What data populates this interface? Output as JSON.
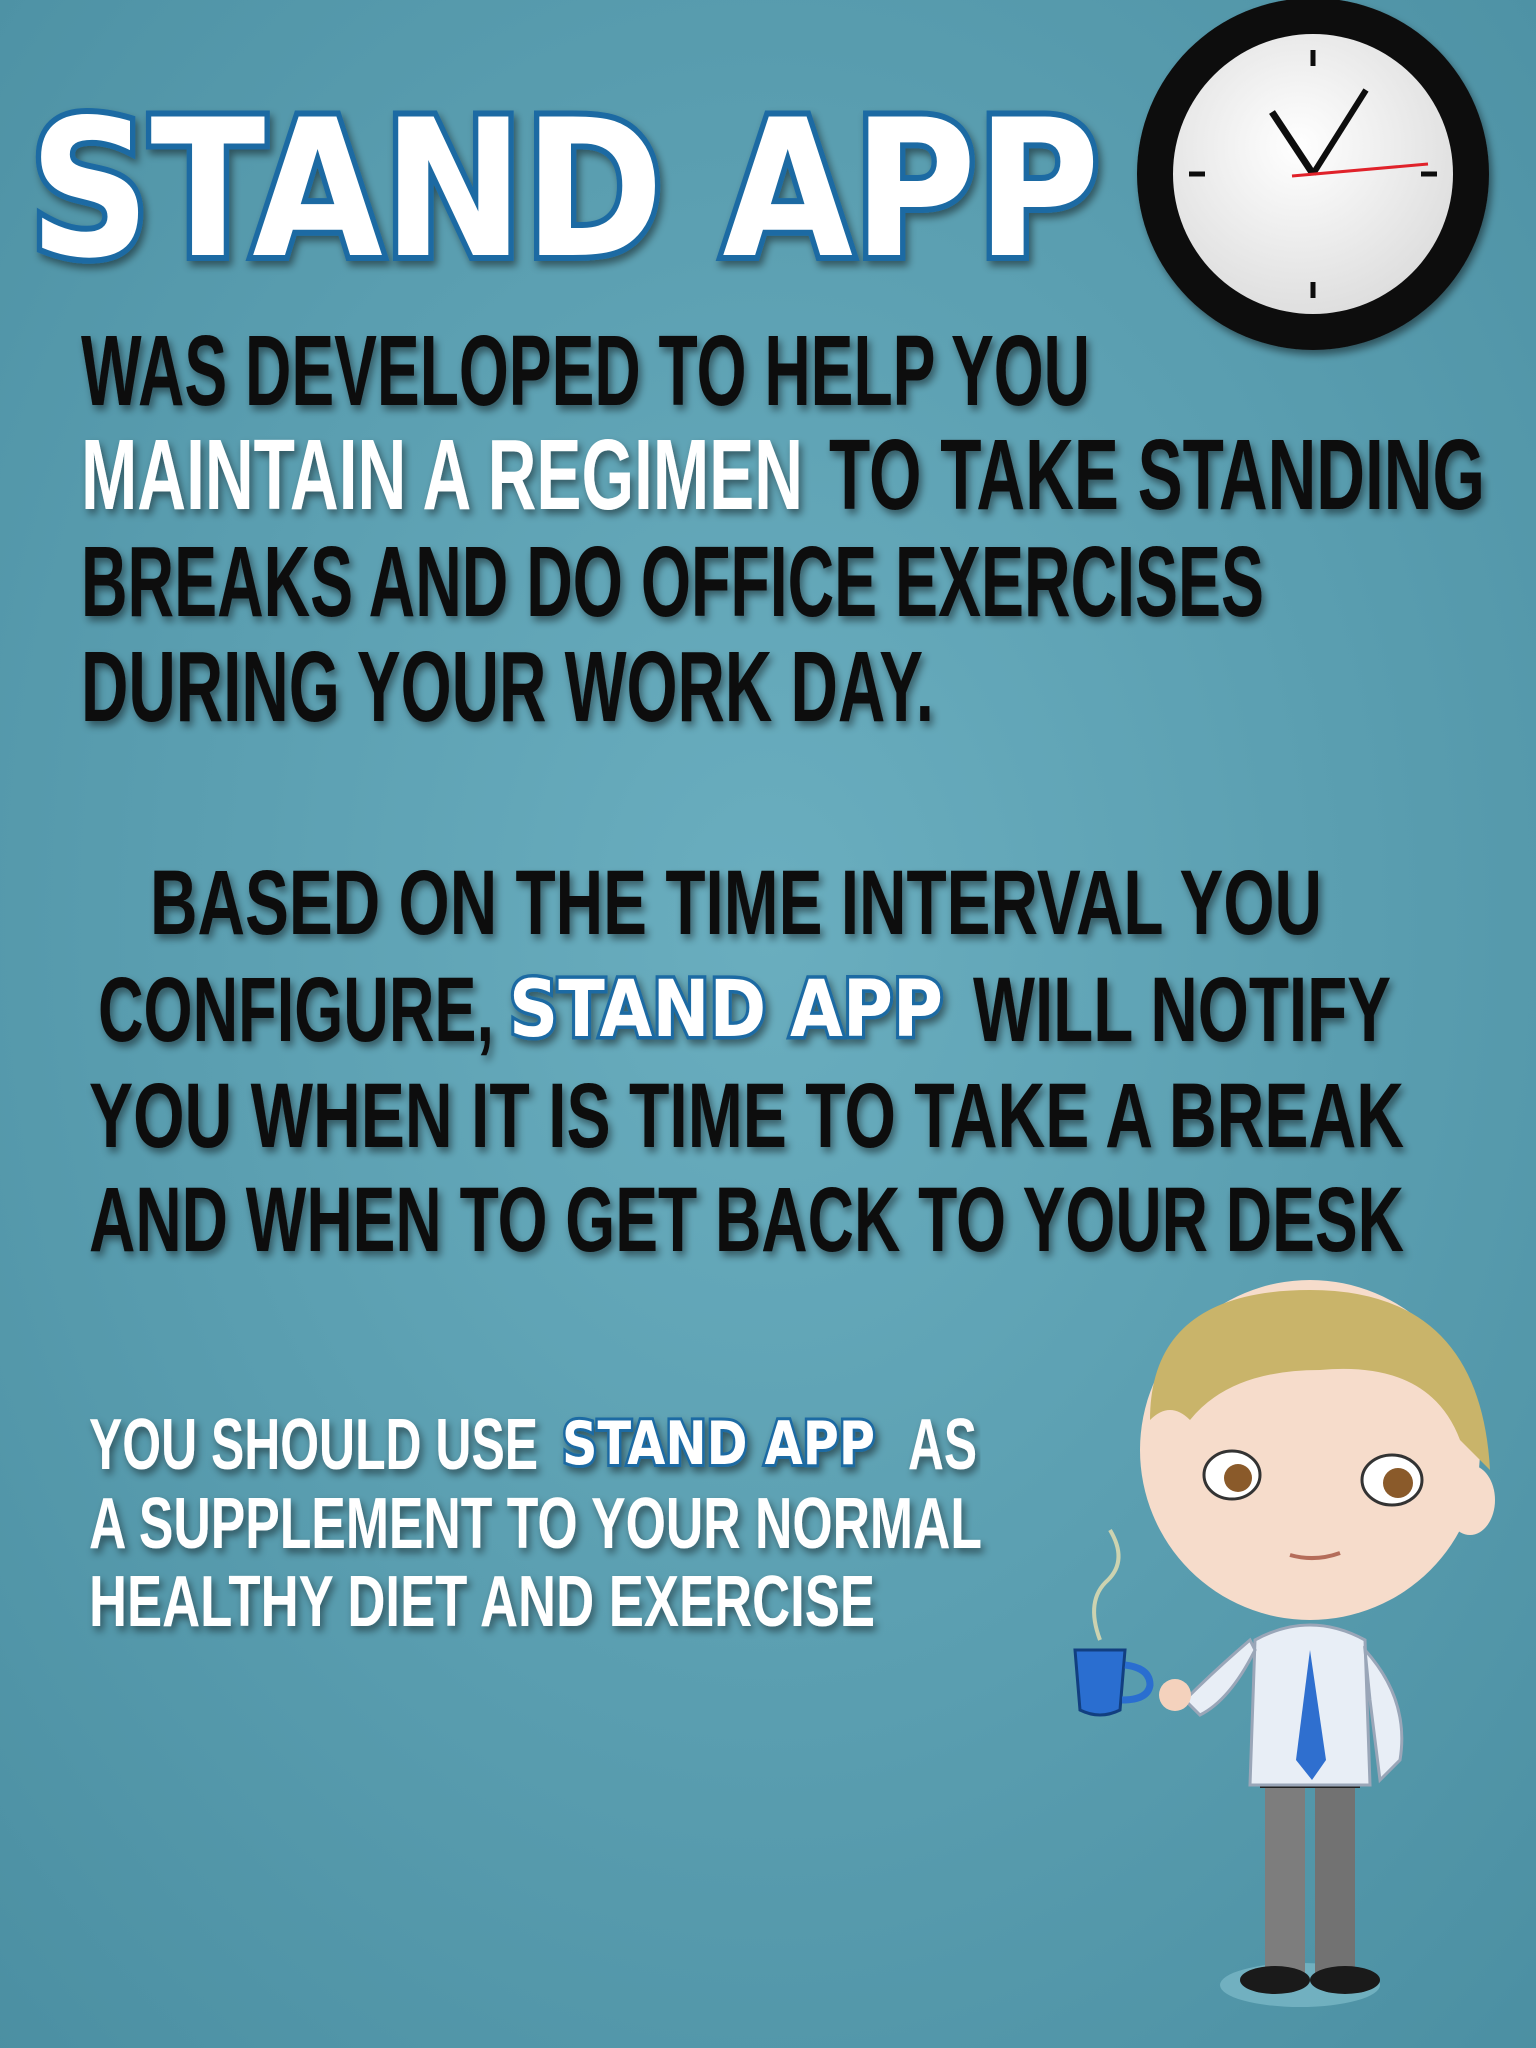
{
  "title": "STAND APP",
  "intro": {
    "lines": [
      "WAS DEVELOPED TO HELP YOU",
      {
        "highlight": "MAINTAIN A REGIMEN",
        "rest": "TO  TAKE STANDING"
      },
      "BREAKS AND DO OFFICE EXERCISES",
      "DURING YOUR WORK DAY."
    ]
  },
  "details": {
    "lines": [
      "BASED ON THE TIME INTERVAL YOU",
      {
        "before": "CONFIGURE,",
        "brand": "STAND APP",
        "after": "WILL NOTIFY"
      },
      "YOU WHEN IT IS TIME TO TAKE A BREAK",
      "AND WHEN TO GET BACK TO YOUR DESK"
    ]
  },
  "advice": {
    "lines": [
      {
        "before": "YOU SHOULD USE",
        "brand": "STAND APP",
        "after": "AS"
      },
      "A SUPPLEMENT TO YOUR NORMAL",
      "HEALTHY DIET AND EXERCISE"
    ]
  }
}
